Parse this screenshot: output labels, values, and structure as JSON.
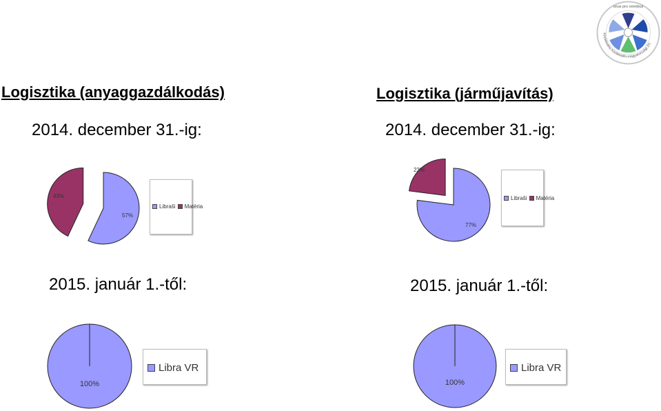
{
  "page": {
    "left_title": "Logisztika (anyaggazdálkodás)",
    "left_date": "2014. december 31.-ig:",
    "left_date2": "2015. január 1.-től:",
    "right_title": "Logisztika (járműjavítás)",
    "right_date": "2014. december 31.-ig:",
    "right_date2": "2015. január 1.-től:"
  },
  "logo": {
    "motto": "unus pro omnibus",
    "ring_text": "Közlekedési Közlekedés-magyarországi Zrt.",
    "description": "logo-seal"
  },
  "colors": {
    "libra": "#9999ff",
    "materia": "#993366",
    "text": "#000000"
  },
  "chart_data": [
    {
      "type": "pie",
      "title": "",
      "categories": [
        "Libraši",
        "Matéria"
      ],
      "values": [
        57,
        43
      ],
      "labels": [
        "57%",
        "43%"
      ],
      "legend": [
        "Libraši",
        "Matéria"
      ],
      "legend_position": "right",
      "exploded": true
    },
    {
      "type": "pie",
      "title": "",
      "categories": [
        "Libraši",
        "Matéria"
      ],
      "values": [
        77,
        23
      ],
      "labels": [
        "77%",
        "23%"
      ],
      "legend": [
        "Libraši",
        "Matéria"
      ],
      "legend_position": "right",
      "exploded": true
    },
    {
      "type": "pie",
      "title": "",
      "categories": [
        "Libra VR"
      ],
      "values": [
        100
      ],
      "labels": [
        "100%"
      ],
      "legend": [
        "Libra VR"
      ],
      "legend_position": "right",
      "exploded": false
    },
    {
      "type": "pie",
      "title": "",
      "categories": [
        "Libra VR"
      ],
      "values": [
        100
      ],
      "labels": [
        "100%"
      ],
      "legend": [
        "Libra VR"
      ],
      "legend_position": "right",
      "exploded": false
    }
  ]
}
